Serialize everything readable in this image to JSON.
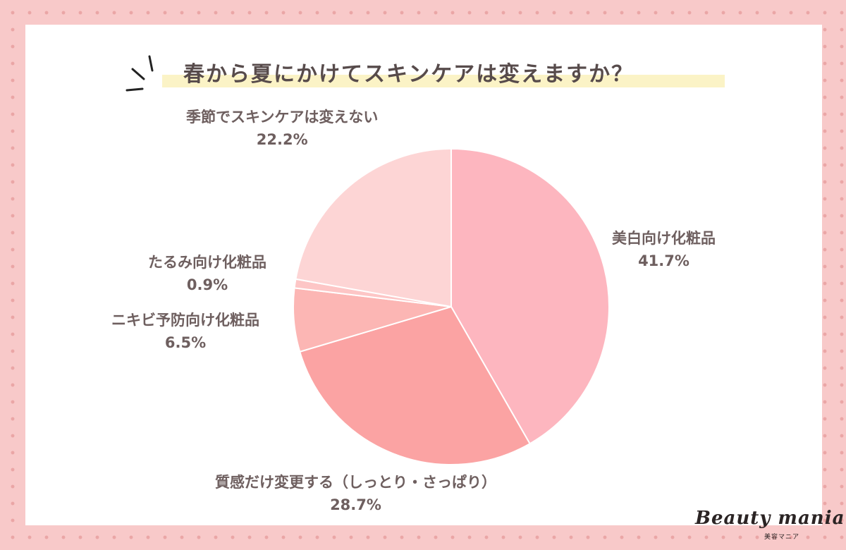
{
  "chart_data": {
    "type": "pie",
    "title": "春から夏にかけてスキンケアは変えますか？",
    "slices": [
      {
        "label": "美白向け化粧品",
        "value": 41.7,
        "value_label": "41.7%",
        "color": "#fdb6bf"
      },
      {
        "label": "質感だけ変更する（しっとり・さっぱり）",
        "value": 28.7,
        "value_label": "28.7%",
        "color": "#fba3a3"
      },
      {
        "label": "ニキビ予防向け化粧品",
        "value": 6.5,
        "value_label": "6.5%",
        "color": "#fcb6b4"
      },
      {
        "label": "たるみ向け化粧品",
        "value": 0.9,
        "value_label": "0.9%",
        "color": "#fdc6c6"
      },
      {
        "label": "季節でスキンケアは変えない",
        "value": 22.2,
        "value_label": "22.2%",
        "color": "#fdd5d5"
      }
    ],
    "start_angle": "12 o'clock",
    "direction": "clockwise"
  },
  "branding": {
    "logo_text": "Beauty mania",
    "logo_subtext": "美容マニア"
  },
  "colors": {
    "background": "#f8c9c9",
    "dots": "#eaa6a6",
    "card": "#ffffff",
    "title_highlight": "#fbf3c6",
    "text": "#6e5f5f"
  }
}
